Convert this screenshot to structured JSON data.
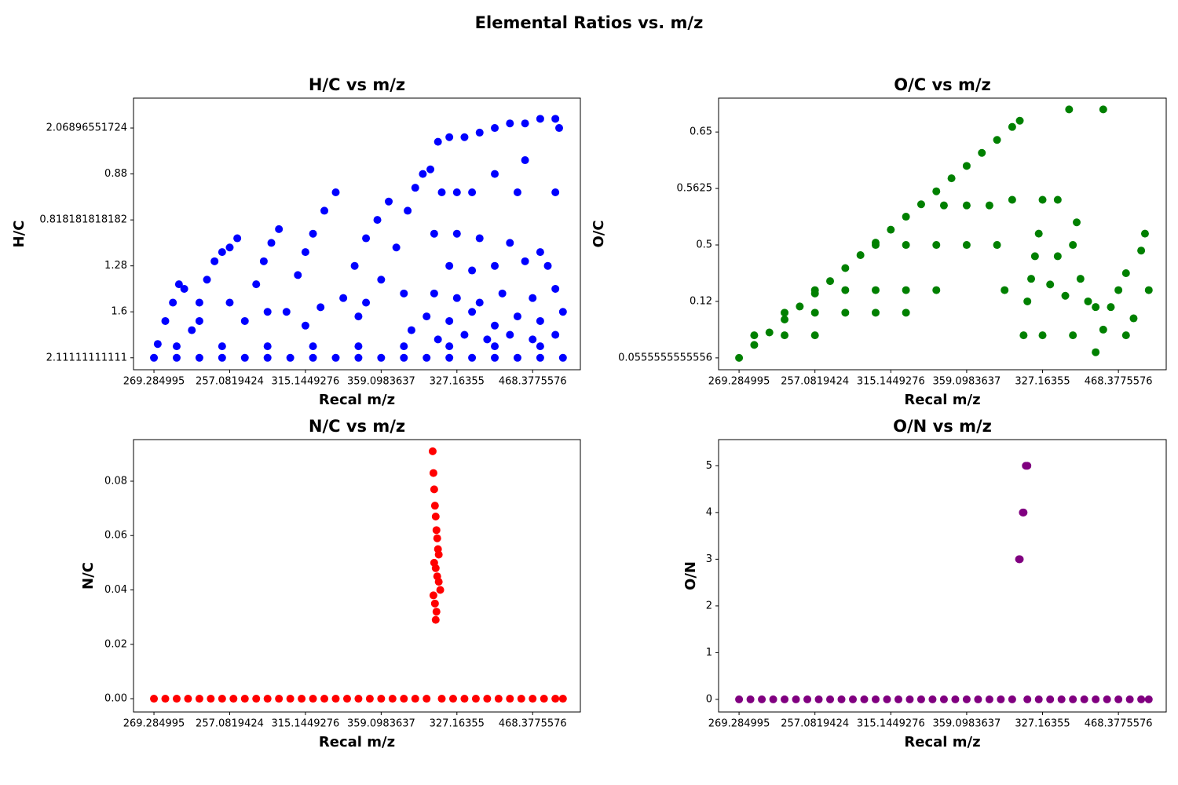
{
  "title": "Elemental Ratios vs. m/z",
  "chart_data": [
    {
      "type": "scatter",
      "title": "H/C vs m/z",
      "x_label": "Recal m/z",
      "y_label": "H/C",
      "color": "#0000ff",
      "xlim": [
        -270,
        5630
      ],
      "xticks": [
        {
          "value": 0,
          "label": "269.284995"
        },
        {
          "value": 1000,
          "label": "257.0819424"
        },
        {
          "value": 2000,
          "label": "315.1449276"
        },
        {
          "value": 3000,
          "label": "359.0983637"
        },
        {
          "value": 4000,
          "label": "327.16355"
        },
        {
          "value": 5000,
          "label": "468.3775576"
        }
      ],
      "ylim": [
        -0.26,
        5.65
      ],
      "yticks": [
        {
          "value": 0,
          "label": "2.11111111111"
        },
        {
          "value": 1,
          "label": "1.6"
        },
        {
          "value": 2,
          "label": "1.28"
        },
        {
          "value": 3,
          "label": "0.818181818182"
        },
        {
          "value": 4,
          "label": "0.88"
        },
        {
          "value": 5,
          "label": "2.06896551724"
        }
      ],
      "x": [
        50,
        150,
        250,
        330,
        400,
        500,
        600,
        700,
        800,
        900,
        1000,
        1100,
        1200,
        1350,
        1450,
        1550,
        1650,
        1750,
        1900,
        2000,
        2100,
        2250,
        2400,
        2500,
        2650,
        2800,
        2950,
        3100,
        3200,
        3350,
        3450,
        3550,
        3650,
        3750,
        3900,
        4100,
        4300,
        4500,
        4700,
        4900,
        5100,
        5300,
        5350,
        3800,
        4000,
        4200,
        4500,
        4800,
        4900,
        5300,
        3700,
        4000,
        4300,
        4700,
        5100,
        3900,
        4200,
        4500,
        4900,
        5200,
        3700,
        4000,
        4300,
        4600,
        5000,
        5300,
        3600,
        3900,
        4200,
        4500,
        4800,
        5100,
        5400,
        3750,
        4100,
        4400,
        4700,
        5000,
        5300,
        1000,
        1500,
        2200,
        2800,
        3300,
        600,
        2000,
        2700,
        3000,
        3400,
        0,
        300,
        600,
        900,
        1200,
        1500,
        1800,
        2100,
        2400,
        2700,
        3000,
        3300,
        3600,
        3900,
        4200,
        4500,
        4800,
        5100,
        5400,
        300,
        900,
        1500,
        2100,
        2700,
        3300,
        3900,
        4500,
        5100
      ],
      "values": [
        0.3,
        0.8,
        1.2,
        1.6,
        1.5,
        0.6,
        1.2,
        1.7,
        2.1,
        2.3,
        2.4,
        2.6,
        0.8,
        1.6,
        2.1,
        2.5,
        2.8,
        1.0,
        1.8,
        2.3,
        2.7,
        3.2,
        3.6,
        1.3,
        2.0,
        2.6,
        3.0,
        3.4,
        2.4,
        3.2,
        3.7,
        4.0,
        4.1,
        4.7,
        4.8,
        4.8,
        4.9,
        5.0,
        5.1,
        5.1,
        5.2,
        5.2,
        5.0,
        3.6,
        3.6,
        3.6,
        4.0,
        3.6,
        4.3,
        3.6,
        2.7,
        2.7,
        2.6,
        2.5,
        2.3,
        2.0,
        1.9,
        2.0,
        2.1,
        2.0,
        1.4,
        1.3,
        1.2,
        1.4,
        1.3,
        1.5,
        0.9,
        0.8,
        1.0,
        0.7,
        0.9,
        0.8,
        1.0,
        0.4,
        0.5,
        0.4,
        0.5,
        0.4,
        0.5,
        1.2,
        1.0,
        1.1,
        1.2,
        1.4,
        0.8,
        0.7,
        0.9,
        1.7,
        0.6,
        0,
        0,
        0,
        0,
        0,
        0,
        0,
        0,
        0,
        0,
        0,
        0,
        0,
        0,
        0,
        0,
        0,
        0,
        0,
        0.25,
        0.25,
        0.25,
        0.25,
        0.25,
        0.25,
        0.25,
        0.25,
        0.25
      ]
    },
    {
      "type": "scatter",
      "title": "O/C vs m/z",
      "x_label": "Recal m/z",
      "y_label": "O/C",
      "color": "#008000",
      "xlim": [
        -270,
        5630
      ],
      "xticks": [
        {
          "value": 0,
          "label": "269.284995"
        },
        {
          "value": 1000,
          "label": "257.0819424"
        },
        {
          "value": 2000,
          "label": "315.1449276"
        },
        {
          "value": 3000,
          "label": "359.0983637"
        },
        {
          "value": 4000,
          "label": "327.16355"
        },
        {
          "value": 5000,
          "label": "468.3775576"
        }
      ],
      "ylim": [
        -0.21,
        4.6
      ],
      "yticks": [
        {
          "value": 0,
          "label": "0.0555555555556"
        },
        {
          "value": 1,
          "label": "0.12"
        },
        {
          "value": 2,
          "label": "0.5"
        },
        {
          "value": 3,
          "label": "0.5625"
        },
        {
          "value": 4,
          "label": "0.65"
        }
      ],
      "x": [
        0,
        200,
        400,
        600,
        800,
        1000,
        1200,
        1400,
        1600,
        1800,
        2000,
        2200,
        2400,
        2600,
        2800,
        3000,
        3200,
        3400,
        3600,
        3700,
        200,
        600,
        1000,
        600,
        1000,
        1400,
        1800,
        2200,
        1000,
        1400,
        1800,
        2200,
        2600,
        1800,
        2200,
        2600,
        3000,
        3400,
        2700,
        3000,
        3300,
        3750,
        3800,
        3850,
        3900,
        3950,
        4000,
        4100,
        4200,
        4300,
        4400,
        4450,
        4500,
        4600,
        4400,
        4700,
        4700,
        4800,
        4900,
        5000,
        5100,
        5100,
        5200,
        5300,
        5350,
        5400,
        4350,
        4800,
        4000,
        4200,
        3600,
        3500
      ],
      "values": [
        0,
        0.23,
        0.45,
        0.68,
        0.91,
        1.14,
        1.36,
        1.59,
        1.82,
        2.04,
        2.27,
        2.5,
        2.72,
        2.95,
        3.18,
        3.4,
        3.63,
        3.86,
        4.09,
        4.2,
        0.4,
        0.4,
        0.4,
        0.8,
        0.8,
        0.8,
        0.8,
        0.8,
        1.2,
        1.2,
        1.2,
        1.2,
        1.2,
        2.0,
        2.0,
        2.0,
        2.0,
        2.0,
        2.7,
        2.7,
        2.7,
        0.4,
        1.0,
        1.4,
        1.8,
        2.2,
        0.4,
        1.3,
        1.8,
        1.1,
        2.0,
        2.4,
        1.4,
        1.0,
        0.4,
        0.9,
        0.1,
        0.5,
        0.9,
        1.2,
        1.5,
        0.4,
        0.7,
        1.9,
        2.2,
        1.2,
        4.4,
        4.4,
        2.8,
        2.8,
        2.8,
        1.2
      ]
    },
    {
      "type": "scatter",
      "title": "N/C vs m/z",
      "x_label": "Recal m/z",
      "y_label": "N/C",
      "color": "#ff0000",
      "xlim": [
        -270,
        5630
      ],
      "xticks": [
        {
          "value": 0,
          "label": "269.284995"
        },
        {
          "value": 1000,
          "label": "257.0819424"
        },
        {
          "value": 2000,
          "label": "315.1449276"
        },
        {
          "value": 3000,
          "label": "359.0983637"
        },
        {
          "value": 4000,
          "label": "327.16355"
        },
        {
          "value": 5000,
          "label": "468.3775576"
        }
      ],
      "ylim": [
        -0.0049,
        0.0953
      ],
      "yticks": [
        {
          "value": 0,
          "label": "0.00"
        },
        {
          "value": 0.02,
          "label": "0.02"
        },
        {
          "value": 0.04,
          "label": "0.04"
        },
        {
          "value": 0.06,
          "label": "0.06"
        },
        {
          "value": 0.08,
          "label": "0.08"
        }
      ],
      "x": [
        0,
        150,
        300,
        450,
        600,
        750,
        900,
        1050,
        1200,
        1350,
        1500,
        1650,
        1800,
        1950,
        2100,
        2250,
        2400,
        2550,
        2700,
        2850,
        3000,
        3150,
        3300,
        3450,
        3600,
        3800,
        3950,
        4100,
        4250,
        4400,
        4550,
        4700,
        4850,
        5000,
        5150,
        5300,
        5400,
        3680,
        3690,
        3700,
        3710,
        3720,
        3730,
        3740,
        3750,
        3760,
        3700,
        3720,
        3740,
        3760,
        3780,
        3690,
        3710,
        3730,
        3720
      ],
      "values": [
        0,
        0,
        0,
        0,
        0,
        0,
        0,
        0,
        0,
        0,
        0,
        0,
        0,
        0,
        0,
        0,
        0,
        0,
        0,
        0,
        0,
        0,
        0,
        0,
        0,
        0,
        0,
        0,
        0,
        0,
        0,
        0,
        0,
        0,
        0,
        0,
        0,
        0.091,
        0.083,
        0.077,
        0.071,
        0.067,
        0.062,
        0.059,
        0.055,
        0.053,
        0.05,
        0.048,
        0.045,
        0.043,
        0.04,
        0.038,
        0.035,
        0.032,
        0.029
      ]
    },
    {
      "type": "scatter",
      "title": "O/N vs m/z",
      "x_label": "Recal m/z",
      "y_label": "O/N",
      "color": "#800080",
      "xlim": [
        -270,
        5630
      ],
      "xticks": [
        {
          "value": 0,
          "label": "269.284995"
        },
        {
          "value": 1000,
          "label": "257.0819424"
        },
        {
          "value": 2000,
          "label": "315.1449276"
        },
        {
          "value": 3000,
          "label": "359.0983637"
        },
        {
          "value": 4000,
          "label": "327.16355"
        },
        {
          "value": 5000,
          "label": "468.3775576"
        }
      ],
      "ylim": [
        -0.27,
        5.56
      ],
      "yticks": [
        0,
        1,
        2,
        3,
        4,
        5
      ],
      "x": [
        0,
        150,
        300,
        450,
        600,
        750,
        900,
        1050,
        1200,
        1350,
        1500,
        1650,
        1800,
        1950,
        2100,
        2250,
        2400,
        2550,
        2700,
        2850,
        3000,
        3150,
        3300,
        3450,
        3600,
        3800,
        3950,
        4100,
        4250,
        4400,
        4550,
        4700,
        4850,
        5000,
        5150,
        5300,
        5400,
        3690,
        3700,
        3740,
        3750,
        3780,
        3800
      ],
      "values": [
        0,
        0,
        0,
        0,
        0,
        0,
        0,
        0,
        0,
        0,
        0,
        0,
        0,
        0,
        0,
        0,
        0,
        0,
        0,
        0,
        0,
        0,
        0,
        0,
        0,
        0,
        0,
        0,
        0,
        0,
        0,
        0,
        0,
        0,
        0,
        0,
        0,
        3,
        3,
        4,
        4,
        5,
        5
      ]
    }
  ]
}
